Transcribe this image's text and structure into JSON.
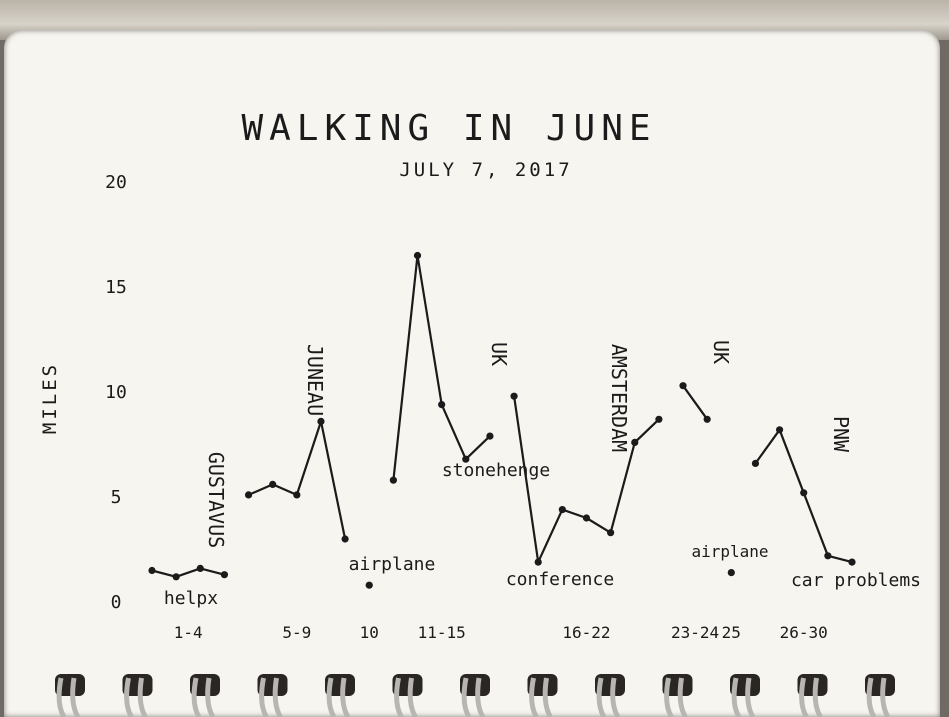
{
  "chart_data": {
    "type": "line",
    "title": "WALKING IN JUNE",
    "subtitle": "JULY 7, 2017",
    "ylabel": "MILES",
    "xlabel": "",
    "ylim": [
      0,
      20
    ],
    "yticks": [
      {
        "value": 0,
        "label": "0"
      },
      {
        "value": 5,
        "label": "5"
      },
      {
        "value": 10,
        "label": "10"
      },
      {
        "value": 15,
        "label": "15"
      },
      {
        "value": 20,
        "label": "20"
      }
    ],
    "grid": false,
    "legend": "none",
    "x_range": [
      1,
      30
    ],
    "x_groups": [
      {
        "label": "1-4",
        "x": 2.5
      },
      {
        "label": "5-9",
        "x": 7
      },
      {
        "label": "10",
        "x": 10
      },
      {
        "label": "11-15",
        "x": 13
      },
      {
        "label": "16-22",
        "x": 19
      },
      {
        "label": "23-24",
        "x": 23.5
      },
      {
        "label": "25",
        "x": 25
      },
      {
        "label": "26-30",
        "x": 28
      }
    ],
    "segments": [
      {
        "name": "1-4",
        "points": [
          [
            1,
            1.5
          ],
          [
            2,
            1.2
          ],
          [
            3,
            1.6
          ],
          [
            4,
            1.3
          ]
        ]
      },
      {
        "name": "5-9",
        "points": [
          [
            5,
            5.1
          ],
          [
            6,
            5.6
          ],
          [
            7,
            5.1
          ],
          [
            8,
            8.6
          ],
          [
            9,
            3.0
          ]
        ]
      },
      {
        "name": "10",
        "points": [
          [
            10,
            0.8
          ]
        ]
      },
      {
        "name": "11-15",
        "points": [
          [
            11,
            5.8
          ],
          [
            12,
            16.5
          ],
          [
            13,
            9.4
          ],
          [
            14,
            6.8
          ],
          [
            15,
            7.9
          ]
        ]
      },
      {
        "name": "16-22",
        "points": [
          [
            16,
            9.8
          ],
          [
            17,
            1.9
          ],
          [
            18,
            4.4
          ],
          [
            19,
            4.0
          ],
          [
            20,
            3.3
          ],
          [
            21,
            7.6
          ],
          [
            22,
            8.7
          ]
        ]
      },
      {
        "name": "23-24",
        "points": [
          [
            23,
            10.3
          ],
          [
            24,
            8.7
          ]
        ]
      },
      {
        "name": "25",
        "points": [
          [
            25,
            1.4
          ]
        ]
      },
      {
        "name": "26-30",
        "points": [
          [
            26,
            6.6
          ],
          [
            27,
            8.2
          ],
          [
            28,
            5.2
          ],
          [
            29,
            2.2
          ],
          [
            30,
            1.9
          ]
        ]
      }
    ],
    "annotations": [
      {
        "id": "gustavus",
        "text": "GUSTAVUS",
        "vertical": true
      },
      {
        "id": "helpx",
        "text": "helpx",
        "vertical": false
      },
      {
        "id": "juneau",
        "text": "JUNEAU",
        "vertical": true
      },
      {
        "id": "airplane-1",
        "text": "airplane",
        "vertical": false
      },
      {
        "id": "uk-1",
        "text": "UK",
        "vertical": true
      },
      {
        "id": "stonehenge",
        "text": "stonehenge",
        "vertical": false
      },
      {
        "id": "conference",
        "text": "conference",
        "vertical": false
      },
      {
        "id": "amsterdam",
        "text": "AMSTERDAM",
        "vertical": true
      },
      {
        "id": "uk-2",
        "text": "UK",
        "vertical": true
      },
      {
        "id": "airplane-2",
        "text": "airplane",
        "vertical": false
      },
      {
        "id": "pnw",
        "text": "PNW",
        "vertical": true
      },
      {
        "id": "car-problems",
        "text": "car problems",
        "vertical": false
      }
    ]
  },
  "notebook": {
    "corner_mark": "4",
    "spiral_rings": 13
  },
  "colors": {
    "ink": "#1b1b1b",
    "paper": "#f7f5ef",
    "ring": "#b8b6b2"
  }
}
